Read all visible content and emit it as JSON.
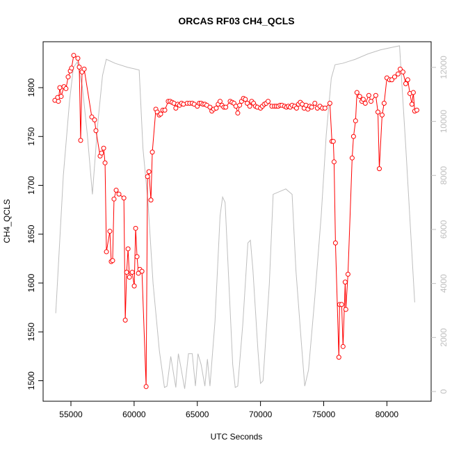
{
  "chart_data": {
    "type": "line",
    "title": "ORCAS RF03 CH4_QCLS",
    "x_label": "UTC Seconds",
    "y_label": "CH4_QCLS",
    "xlim": [
      52800,
      83500
    ],
    "xticks": [
      55000,
      60000,
      65000,
      70000,
      75000,
      80000
    ],
    "ylim": [
      1479,
      1847
    ],
    "yticks": [
      1500,
      1550,
      1600,
      1650,
      1700,
      1750,
      1800
    ],
    "y2lim": [
      -360,
      12950
    ],
    "y2ticks": [
      0,
      2000,
      4000,
      6000,
      8000,
      10000,
      12000
    ],
    "series": [
      {
        "color": "#bebebe",
        "axis": "y2",
        "markers": false,
        "x": [
          53800,
          54400,
          54900,
          55200,
          55500,
          55900,
          56300,
          56700,
          57100,
          57500,
          57800,
          58500,
          59500,
          60000,
          60400,
          60700,
          61100,
          61500,
          62000,
          62400,
          62600,
          62900,
          63300,
          63500,
          63700,
          64000,
          64300,
          64600,
          64850,
          65050,
          65300,
          65600,
          65800,
          66000,
          66400,
          66800,
          67000,
          67200,
          67500,
          67800,
          68000,
          68200,
          68600,
          69000,
          69200,
          69400,
          69800,
          70000,
          70200,
          70700,
          71000,
          71500,
          72000,
          72500,
          72800,
          73200,
          73500,
          73800,
          74300,
          74800,
          75200,
          75600,
          75900,
          76500,
          77500,
          78500,
          79500,
          80500,
          81000,
          81500,
          82200
        ],
        "values": [
          2900,
          8000,
          10800,
          12000,
          12200,
          11300,
          9500,
          7300,
          9800,
          11700,
          12300,
          12150,
          12000,
          11950,
          11900,
          9000,
          7000,
          4000,
          1500,
          150,
          200,
          1300,
          150,
          1400,
          900,
          100,
          1400,
          1400,
          200,
          1400,
          1000,
          200,
          1200,
          200,
          2600,
          6500,
          7200,
          7000,
          4000,
          1000,
          150,
          200,
          2500,
          5500,
          5600,
          4500,
          1500,
          300,
          400,
          4000,
          7300,
          7400,
          7500,
          7300,
          4500,
          2000,
          200,
          800,
          3500,
          6500,
          9500,
          11600,
          12100,
          12150,
          12300,
          12500,
          12650,
          12750,
          12800,
          9000,
          3300
        ]
      },
      {
        "color": "#ff0000",
        "markers": true,
        "x": [
          53730,
          53950,
          54010,
          54120,
          54230,
          54450,
          54610,
          54780,
          54950,
          55050,
          55220,
          55550,
          55660,
          55770,
          55880,
          56050,
          56650,
          56870,
          56980,
          57310,
          57420,
          57590,
          57700,
          57810,
          58080,
          58190,
          58300,
          58410,
          58580,
          58800,
          59190,
          59300,
          59410,
          59520,
          59630,
          59850,
          60010,
          60120,
          60230,
          60340,
          60450,
          60620,
          60950,
          61060,
          61170,
          61330,
          61440,
          61720,
          61830,
          61990,
          62100,
          62270,
          62430,
          62700,
          62850,
          63000,
          63150,
          63300,
          63450,
          63600,
          63750,
          63900,
          64200,
          64400,
          64600,
          64750,
          65000,
          65150,
          65300,
          65450,
          65600,
          65750,
          66000,
          66150,
          66300,
          66500,
          66650,
          66800,
          66950,
          67100,
          67250,
          67600,
          67750,
          67900,
          68050,
          68200,
          68350,
          68500,
          68650,
          68800,
          68950,
          69150,
          69300,
          69450,
          69600,
          69750,
          70000,
          70150,
          70300,
          70450,
          70600,
          70900,
          71100,
          71250,
          71400,
          71550,
          71700,
          71900,
          72050,
          72200,
          72350,
          72500,
          72700,
          72850,
          73000,
          73150,
          73300,
          73450,
          73600,
          73750,
          73900,
          74050,
          74300,
          74500,
          74700,
          74900,
          75100,
          75490,
          75650,
          75760,
          75820,
          75930,
          76200,
          76260,
          76420,
          76530,
          76700,
          76750,
          76920,
          77250,
          77360,
          77520,
          77630,
          77850,
          78020,
          78130,
          78290,
          78570,
          78740,
          79120,
          79290,
          79400,
          79620,
          79780,
          80000,
          80220,
          80390,
          80610,
          80880,
          81050,
          81270,
          81490,
          81650,
          81820,
          81980,
          82090,
          82200,
          82370
        ],
        "values": [
          1787,
          1790,
          1786,
          1800,
          1791,
          1801,
          1799,
          1811,
          1817,
          1820,
          1833,
          1830,
          1821,
          1746,
          1816,
          1819,
          1770,
          1767,
          1756,
          1730,
          1733,
          1738,
          1723,
          1632,
          1653,
          1622,
          1623,
          1686,
          1695,
          1691,
          1687,
          1562,
          1611,
          1635,
          1606,
          1611,
          1597,
          1656,
          1627,
          1610,
          1614,
          1612,
          1494,
          1709,
          1714,
          1685,
          1734,
          1778,
          1775,
          1772,
          1773,
          1777,
          1777,
          1786,
          1786,
          1785,
          1784,
          1779,
          1783,
          1782,
          1784,
          1783,
          1784,
          1784,
          1784,
          1783,
          1781,
          1784,
          1784,
          1783,
          1783,
          1782,
          1780,
          1776,
          1778,
          1779,
          1783,
          1786,
          1782,
          1780,
          1780,
          1786,
          1785,
          1784,
          1781,
          1774,
          1782,
          1786,
          1789,
          1788,
          1784,
          1781,
          1786,
          1784,
          1781,
          1780,
          1779,
          1781,
          1783,
          1784,
          1786,
          1781,
          1781,
          1781,
          1781,
          1782,
          1782,
          1781,
          1780,
          1781,
          1780,
          1782,
          1781,
          1779,
          1783,
          1785,
          1783,
          1779,
          1782,
          1778,
          1781,
          1780,
          1784,
          1779,
          1781,
          1779,
          1779,
          1784,
          1745,
          1745,
          1724,
          1641,
          1524,
          1578,
          1578,
          1535,
          1601,
          1573,
          1609,
          1728,
          1750,
          1766,
          1795,
          1791,
          1786,
          1788,
          1784,
          1792,
          1786,
          1792,
          1775,
          1717,
          1772,
          1784,
          1810,
          1808,
          1808,
          1811,
          1814,
          1819,
          1816,
          1804,
          1808,
          1794,
          1783,
          1795,
          1776,
          1777
        ]
      }
    ]
  }
}
